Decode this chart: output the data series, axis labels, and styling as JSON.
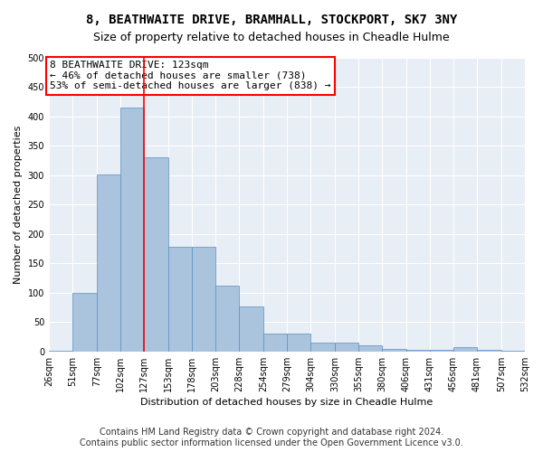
{
  "title1": "8, BEATHWAITE DRIVE, BRAMHALL, STOCKPORT, SK7 3NY",
  "title2": "Size of property relative to detached houses in Cheadle Hulme",
  "xlabel": "Distribution of detached houses by size in Cheadle Hulme",
  "ylabel": "Number of detached properties",
  "bin_edges": [
    26,
    51,
    77,
    102,
    127,
    153,
    178,
    203,
    228,
    254,
    279,
    304,
    330,
    355,
    380,
    406,
    431,
    456,
    481,
    507,
    532
  ],
  "bar_heights": [
    2,
    100,
    302,
    415,
    330,
    178,
    178,
    112,
    76,
    30,
    30,
    15,
    15,
    10,
    5,
    3,
    3,
    7,
    3,
    2
  ],
  "bar_color": "#aac4de",
  "bar_edge_color": "#5a8fc0",
  "vline_x": 127,
  "vline_color": "red",
  "annotation_title": "8 BEATHWAITE DRIVE: 123sqm",
  "annotation_line1": "← 46% of detached houses are smaller (738)",
  "annotation_line2": "53% of semi-detached houses are larger (838) →",
  "annotation_box_color": "white",
  "annotation_box_edge_color": "red",
  "ylim": [
    0,
    500
  ],
  "yticks": [
    0,
    50,
    100,
    150,
    200,
    250,
    300,
    350,
    400,
    450,
    500
  ],
  "xtick_labels": [
    "26sqm",
    "51sqm",
    "77sqm",
    "102sqm",
    "127sqm",
    "153sqm",
    "178sqm",
    "203sqm",
    "228sqm",
    "254sqm",
    "279sqm",
    "304sqm",
    "330sqm",
    "355sqm",
    "380sqm",
    "406sqm",
    "431sqm",
    "456sqm",
    "481sqm",
    "507sqm",
    "532sqm"
  ],
  "footer1": "Contains HM Land Registry data © Crown copyright and database right 2024.",
  "footer2": "Contains public sector information licensed under the Open Government Licence v3.0.",
  "bg_color": "#e8eef5",
  "grid_color": "#ffffff",
  "title_fontsize": 10,
  "subtitle_fontsize": 9,
  "axis_label_fontsize": 8,
  "tick_fontsize": 7,
  "annotation_fontsize": 8,
  "footer_fontsize": 7
}
